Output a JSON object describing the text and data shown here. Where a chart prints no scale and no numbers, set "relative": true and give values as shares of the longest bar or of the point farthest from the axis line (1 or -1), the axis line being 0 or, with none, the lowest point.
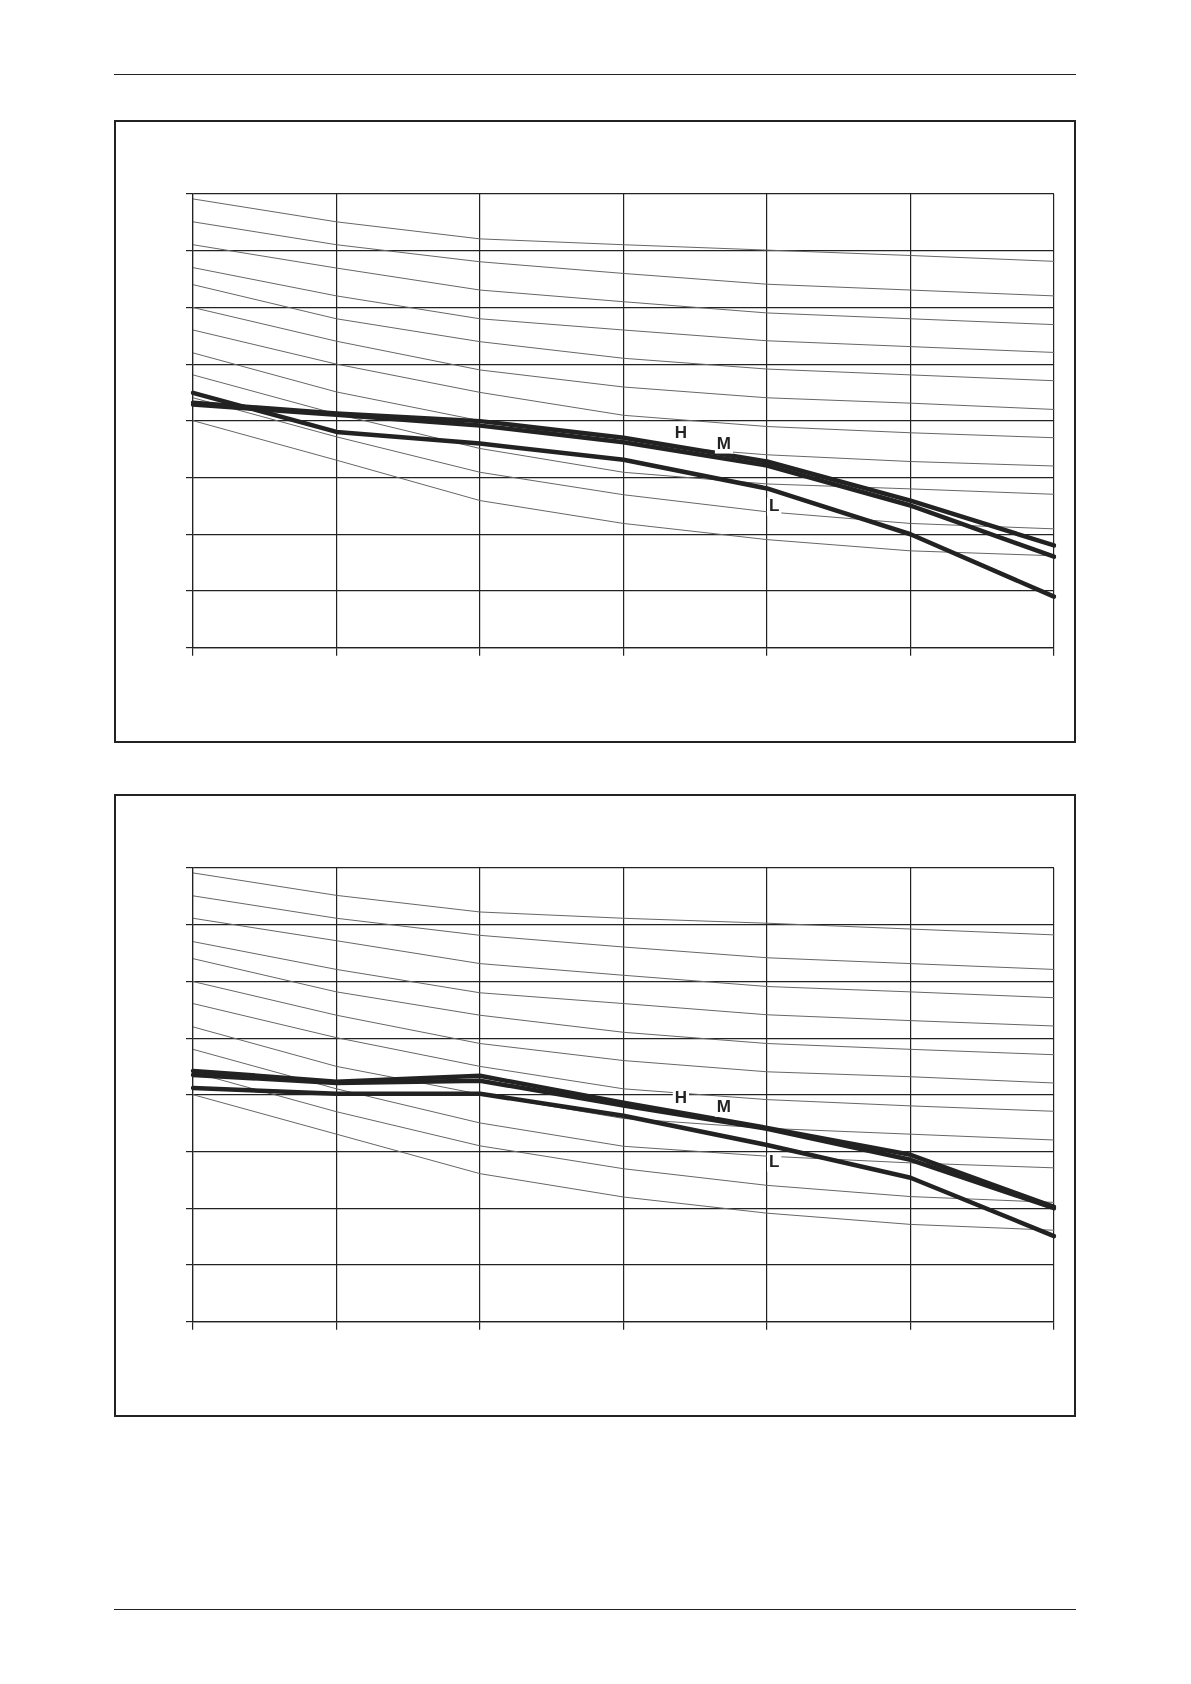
{
  "chart_data": [
    {
      "type": "line",
      "categories": [
        null,
        null,
        null,
        null,
        null,
        null,
        null
      ],
      "relative": true,
      "grid": true,
      "series": [
        {
          "color": "#666666",
          "values": [
            1.0,
            0.949,
            0.911,
            0.898,
            0.886,
            0.874,
            0.861
          ]
        },
        {
          "color": "#666666",
          "values": [
            0.949,
            0.898,
            0.86,
            0.834,
            0.81,
            0.797,
            0.784
          ]
        },
        {
          "color": "#666666",
          "values": [
            0.898,
            0.846,
            0.797,
            0.771,
            0.746,
            0.733,
            0.72
          ]
        },
        {
          "color": "#666666",
          "values": [
            0.847,
            0.784,
            0.733,
            0.708,
            0.684,
            0.671,
            0.658
          ]
        },
        {
          "color": "#666666",
          "values": [
            0.809,
            0.733,
            0.682,
            0.645,
            0.621,
            0.608,
            0.595
          ]
        },
        {
          "color": "#666666",
          "values": [
            0.758,
            0.683,
            0.619,
            0.581,
            0.557,
            0.545,
            0.531
          ]
        },
        {
          "color": "#666666",
          "values": [
            0.708,
            0.632,
            0.569,
            0.518,
            0.493,
            0.479,
            0.468
          ]
        },
        {
          "color": "#666666",
          "values": [
            0.657,
            0.57,
            0.506,
            0.455,
            0.43,
            0.415,
            0.405
          ]
        },
        {
          "color": "#666666",
          "values": [
            0.608,
            0.521,
            0.444,
            0.391,
            0.365,
            0.354,
            0.342
          ]
        },
        {
          "color": "#666666",
          "values": [
            0.557,
            0.47,
            0.391,
            0.341,
            0.303,
            0.277,
            0.265
          ]
        },
        {
          "color": "#666666",
          "values": [
            0.506,
            0.418,
            0.328,
            0.277,
            0.241,
            0.216,
            0.205
          ]
        },
        {
          "name": "H",
          "color": "#222222",
          "values": [
            0.546,
            0.522,
            0.505,
            0.468,
            0.415,
            0.328,
            0.228
          ]
        },
        {
          "name": "M",
          "color": "#222222",
          "values": [
            0.542,
            0.519,
            0.495,
            0.458,
            0.406,
            0.317,
            0.203
          ]
        },
        {
          "name": "L",
          "color": "#222222",
          "values": [
            0.568,
            0.481,
            0.455,
            0.419,
            0.355,
            0.253,
            0.114
          ]
        }
      ]
    },
    {
      "type": "line",
      "categories": [
        null,
        null,
        null,
        null,
        null,
        null,
        null
      ],
      "relative": true,
      "grid": true,
      "series": [
        {
          "color": "#666666",
          "values": [
            1.0,
            0.95,
            0.913,
            0.899,
            0.888,
            0.875,
            0.862
          ]
        },
        {
          "color": "#666666",
          "values": [
            0.949,
            0.899,
            0.861,
            0.835,
            0.811,
            0.798,
            0.785
          ]
        },
        {
          "color": "#666666",
          "values": [
            0.899,
            0.849,
            0.798,
            0.772,
            0.747,
            0.735,
            0.722
          ]
        },
        {
          "color": "#666666",
          "values": [
            0.847,
            0.785,
            0.733,
            0.709,
            0.684,
            0.671,
            0.659
          ]
        },
        {
          "color": "#666666",
          "values": [
            0.809,
            0.735,
            0.683,
            0.645,
            0.62,
            0.607,
            0.595
          ]
        },
        {
          "color": "#666666",
          "values": [
            0.758,
            0.683,
            0.62,
            0.582,
            0.557,
            0.546,
            0.532
          ]
        },
        {
          "color": "#666666",
          "values": [
            0.709,
            0.633,
            0.569,
            0.519,
            0.495,
            0.481,
            0.469
          ]
        },
        {
          "color": "#666666",
          "values": [
            0.657,
            0.569,
            0.507,
            0.453,
            0.431,
            0.418,
            0.405
          ]
        },
        {
          "color": "#666666",
          "values": [
            0.607,
            0.519,
            0.443,
            0.391,
            0.369,
            0.354,
            0.343
          ]
        },
        {
          "color": "#666666",
          "values": [
            0.556,
            0.468,
            0.392,
            0.341,
            0.304,
            0.279,
            0.266
          ]
        },
        {
          "color": "#666666",
          "values": [
            0.506,
            0.418,
            0.33,
            0.278,
            0.242,
            0.217,
            0.204
          ]
        },
        {
          "name": "H",
          "color": "#222222",
          "values": [
            0.559,
            0.535,
            0.548,
            0.488,
            0.432,
            0.372,
            0.256
          ]
        },
        {
          "name": "M",
          "color": "#222222",
          "values": [
            0.55,
            0.532,
            0.537,
            0.482,
            0.43,
            0.361,
            0.253
          ]
        },
        {
          "name": "L",
          "color": "#222222",
          "values": [
            0.521,
            0.508,
            0.508,
            0.459,
            0.394,
            0.321,
            0.191
          ]
        }
      ]
    }
  ]
}
